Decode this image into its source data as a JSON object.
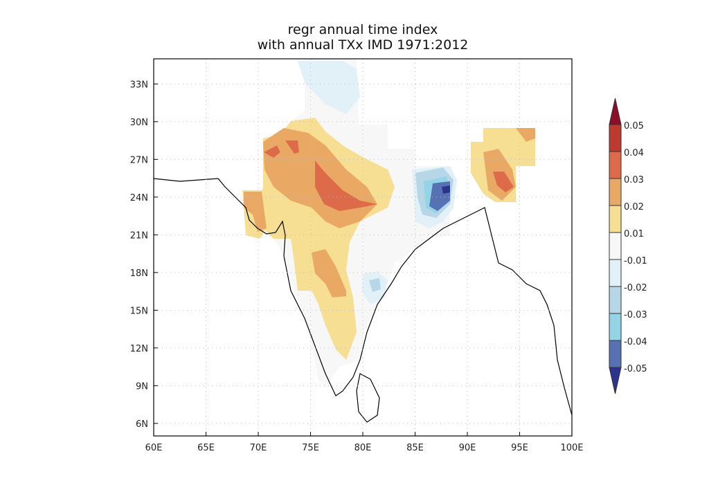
{
  "title": {
    "line1": "regr annual time index",
    "line2": "with annual TXx IMD 1971:2012"
  },
  "map": {
    "lon_range": [
      60,
      100
    ],
    "lat_range": [
      5,
      35
    ],
    "x_ticks": [
      "60E",
      "65E",
      "70E",
      "75E",
      "80E",
      "85E",
      "90E",
      "95E",
      "100E"
    ],
    "y_ticks": [
      "6N",
      "9N",
      "12N",
      "15N",
      "18N",
      "21N",
      "24N",
      "27N",
      "30N",
      "33N"
    ],
    "grid": "dotted"
  },
  "colorbar": {
    "levels": [
      "0.05",
      "0.04",
      "0.03",
      "0.02",
      "0.01",
      "-0.01",
      "-0.02",
      "-0.03",
      "-0.04",
      "-0.05"
    ],
    "colors": [
      "#8e0d2a",
      "#be3a2f",
      "#dd6b4a",
      "#e9a964",
      "#f6df93",
      "#f7f7f7",
      "#e2f0f7",
      "#b7d7e8",
      "#93d4e6",
      "#5672b5",
      "#2c338f"
    ],
    "extend": "both"
  }
}
